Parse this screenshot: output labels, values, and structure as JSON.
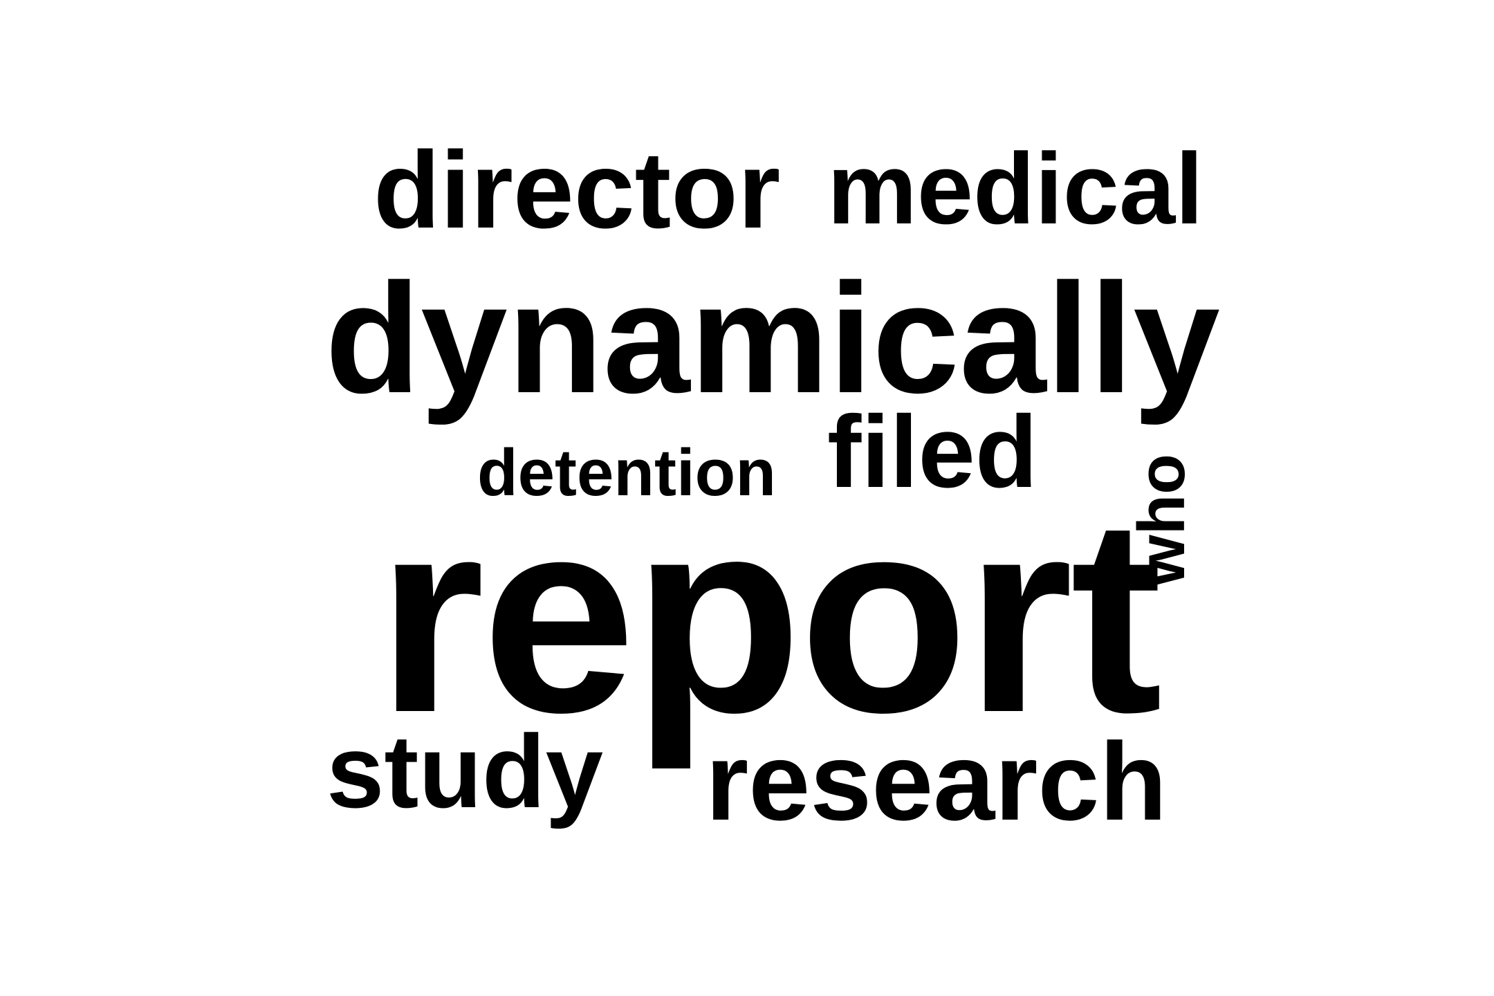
{
  "word_cloud": {
    "text_color": "#000000",
    "background_color": "#ffffff",
    "words": [
      {
        "text": "director"
      },
      {
        "text": "medical"
      },
      {
        "text": "dynamically"
      },
      {
        "text": "detention"
      },
      {
        "text": "filed"
      },
      {
        "text": "report"
      },
      {
        "text": "who"
      },
      {
        "text": "study"
      },
      {
        "text": "research"
      }
    ]
  }
}
